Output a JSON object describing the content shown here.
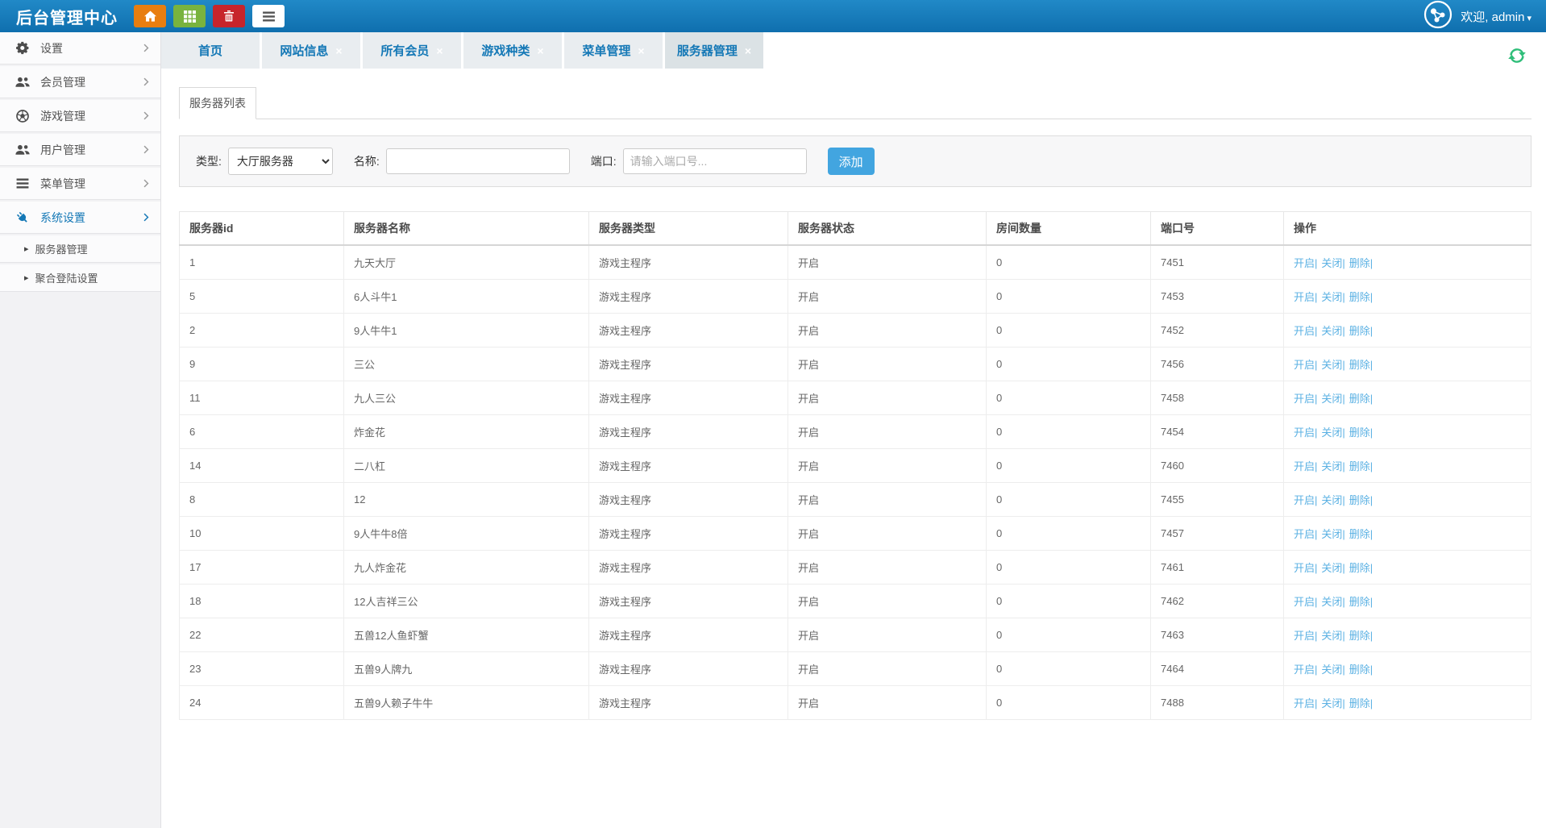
{
  "topbar": {
    "title": "后台管理中心",
    "buttons": [
      {
        "key": "home",
        "icon": "home-icon"
      },
      {
        "key": "grid",
        "icon": "grid-icon"
      },
      {
        "key": "trash",
        "icon": "trash-icon"
      },
      {
        "key": "list",
        "icon": "list-icon"
      }
    ],
    "welcome": "欢迎, admin",
    "welcome_caret": "▾"
  },
  "sidebar": {
    "items": [
      {
        "key": "settings",
        "label": "设置",
        "icon": "gear",
        "active": false
      },
      {
        "key": "members",
        "label": "会员管理",
        "icon": "users",
        "active": false
      },
      {
        "key": "games",
        "label": "游戏管理",
        "icon": "ball",
        "active": false
      },
      {
        "key": "users",
        "label": "用户管理",
        "icon": "users",
        "active": false
      },
      {
        "key": "menus",
        "label": "菜单管理",
        "icon": "list",
        "active": false
      },
      {
        "key": "system",
        "label": "系统设置",
        "icon": "plug",
        "active": true
      }
    ],
    "subitems": [
      {
        "key": "server-management",
        "label": "服务器管理"
      },
      {
        "key": "login-settings",
        "label": "聚合登陆设置"
      }
    ],
    "subitem_marker": "▸"
  },
  "tabs": {
    "close_glyph": "×",
    "items": [
      {
        "label": "首页",
        "closable": false,
        "active": false
      },
      {
        "label": "网站信息",
        "closable": true,
        "active": false
      },
      {
        "label": "所有会员",
        "closable": true,
        "active": false
      },
      {
        "label": "游戏种类",
        "closable": true,
        "active": false
      },
      {
        "label": "菜单管理",
        "closable": true,
        "active": false
      },
      {
        "label": "服务器管理",
        "closable": true,
        "active": true
      }
    ]
  },
  "panel": {
    "tab_label": "服务器列表"
  },
  "filter": {
    "type_label": "类型:",
    "type_value": "大厅服务器",
    "name_label": "名称:",
    "name_value": "",
    "port_label": "端口:",
    "port_placeholder": "请输入端口号...",
    "add_label": "添加"
  },
  "table": {
    "headers": [
      "服务器id",
      "服务器名称",
      "服务器类型",
      "服务器状态",
      "房间数量",
      "端口号",
      "操作"
    ],
    "row_actions": [
      {
        "key": "open",
        "label": "开启|"
      },
      {
        "key": "close",
        "label": "关闭|"
      },
      {
        "key": "delete",
        "label": "删除|"
      }
    ],
    "rows": [
      {
        "id": "1",
        "name": "九天大厅",
        "type": "游戏主程序",
        "status": "开启",
        "rooms": "0",
        "port": "7451"
      },
      {
        "id": "5",
        "name": "6人斗牛1",
        "type": "游戏主程序",
        "status": "开启",
        "rooms": "0",
        "port": "7453"
      },
      {
        "id": "2",
        "name": "9人牛牛1",
        "type": "游戏主程序",
        "status": "开启",
        "rooms": "0",
        "port": "7452"
      },
      {
        "id": "9",
        "name": "三公",
        "type": "游戏主程序",
        "status": "开启",
        "rooms": "0",
        "port": "7456"
      },
      {
        "id": "11",
        "name": "九人三公",
        "type": "游戏主程序",
        "status": "开启",
        "rooms": "0",
        "port": "7458"
      },
      {
        "id": "6",
        "name": "炸金花",
        "type": "游戏主程序",
        "status": "开启",
        "rooms": "0",
        "port": "7454"
      },
      {
        "id": "14",
        "name": "二八杠",
        "type": "游戏主程序",
        "status": "开启",
        "rooms": "0",
        "port": "7460"
      },
      {
        "id": "8",
        "name": "12",
        "type": "游戏主程序",
        "status": "开启",
        "rooms": "0",
        "port": "7455"
      },
      {
        "id": "10",
        "name": "9人牛牛8倍",
        "type": "游戏主程序",
        "status": "开启",
        "rooms": "0",
        "port": "7457"
      },
      {
        "id": "17",
        "name": "九人炸金花",
        "type": "游戏主程序",
        "status": "开启",
        "rooms": "0",
        "port": "7461"
      },
      {
        "id": "18",
        "name": "12人吉祥三公",
        "type": "游戏主程序",
        "status": "开启",
        "rooms": "0",
        "port": "7462"
      },
      {
        "id": "22",
        "name": "五兽12人鱼虾蟹",
        "type": "游戏主程序",
        "status": "开启",
        "rooms": "0",
        "port": "7463"
      },
      {
        "id": "23",
        "name": "五兽9人牌九",
        "type": "游戏主程序",
        "status": "开启",
        "rooms": "0",
        "port": "7464"
      },
      {
        "id": "24",
        "name": "五兽9人赖子牛牛",
        "type": "游戏主程序",
        "status": "开启",
        "rooms": "0",
        "port": "7488"
      }
    ]
  },
  "colors": {
    "accent_blue": "#1478b6",
    "topbar_blue": "#1b80bd",
    "button_orange": "#e87e10",
    "button_green": "#79b33e",
    "button_red": "#c7242b",
    "add_button_blue": "#42a5e0",
    "action_link_blue": "#5bb1e3",
    "refresh_green": "#2fbe79"
  }
}
